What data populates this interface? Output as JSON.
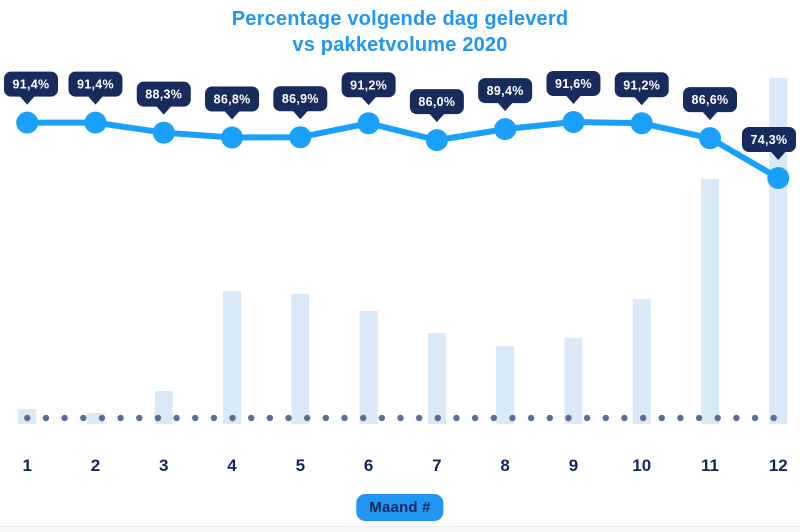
{
  "title": {
    "line1": "Percentage volgende dag geleverd",
    "line2": "vs pakketvolume 2020"
  },
  "x_axis": {
    "label": "Maand #",
    "ticks": [
      "1",
      "2",
      "3",
      "4",
      "5",
      "6",
      "7",
      "8",
      "9",
      "10",
      "11",
      "12"
    ]
  },
  "chart_data": {
    "type": "combo",
    "title": "Percentage volgende dag geleverd vs pakketvolume 2020",
    "xlabel": "Maand #",
    "categories": [
      1,
      2,
      3,
      4,
      5,
      6,
      7,
      8,
      9,
      10,
      11,
      12
    ],
    "legend": "none",
    "grid": "dotted baseline only",
    "series": [
      {
        "name": "Percentage volgende dag geleverd",
        "type": "line",
        "unit": "%",
        "values": [
          91.4,
          91.4,
          88.3,
          86.8,
          86.9,
          91.2,
          86.0,
          89.4,
          91.6,
          91.2,
          86.6,
          74.3
        ],
        "point_labels": [
          "91,4%",
          "91,4%",
          "88,3%",
          "86,8%",
          "86,9%",
          "91,2%",
          "86,0%",
          "89,4%",
          "91,6%",
          "91,2%",
          "86,6%",
          "74,3%"
        ]
      },
      {
        "name": "Pakketvolume 2020",
        "type": "bar",
        "note": "bars are unlabeled; values are relative heights, max month (12) = 100",
        "values_relative": [
          4.3,
          3.2,
          9.5,
          38.4,
          37.6,
          32.7,
          26.3,
          22.5,
          24.9,
          36.1,
          70.8,
          100
        ]
      }
    ],
    "colors": {
      "title": "#2196F3",
      "line": "#18A0FB",
      "marker": "#18A0FB",
      "tooltip_bg": "#172B5C",
      "tooltip_text": "#FFFFFF",
      "bar": "#DAE9F8",
      "baseline_dot": "#5B6E91",
      "axis_text": "#14275B",
      "xlabel_bg": "#2196F3",
      "xlabel_text": "#14275B"
    }
  }
}
